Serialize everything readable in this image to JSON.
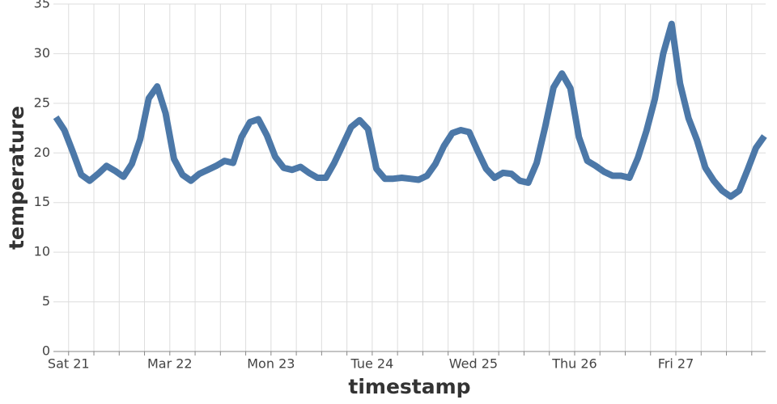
{
  "chart_data": {
    "type": "line",
    "x_label": "timestamp",
    "y_label": "temperature",
    "color": "#4c78a8",
    "grid": true,
    "xlim": [
      -3.6,
      165.3
    ],
    "ylim": [
      0,
      35
    ],
    "yticks": [
      0,
      5,
      10,
      15,
      20,
      25,
      30,
      35
    ],
    "xticks": [
      {
        "value": 0,
        "label": "Sat 21"
      },
      {
        "value": 6,
        "label": null
      },
      {
        "value": 12,
        "label": null
      },
      {
        "value": 18,
        "label": null
      },
      {
        "value": 24,
        "label": "Mar 22"
      },
      {
        "value": 30,
        "label": null
      },
      {
        "value": 36,
        "label": null
      },
      {
        "value": 42,
        "label": null
      },
      {
        "value": 48,
        "label": "Mon 23"
      },
      {
        "value": 54,
        "label": null
      },
      {
        "value": 60,
        "label": null
      },
      {
        "value": 66,
        "label": null
      },
      {
        "value": 72,
        "label": "Tue 24"
      },
      {
        "value": 78,
        "label": null
      },
      {
        "value": 84,
        "label": null
      },
      {
        "value": 90,
        "label": null
      },
      {
        "value": 96,
        "label": "Wed 25"
      },
      {
        "value": 102,
        "label": null
      },
      {
        "value": 108,
        "label": null
      },
      {
        "value": 114,
        "label": null
      },
      {
        "value": 120,
        "label": "Thu 26"
      },
      {
        "value": 126,
        "label": null
      },
      {
        "value": 132,
        "label": null
      },
      {
        "value": 138,
        "label": null
      },
      {
        "value": 144,
        "label": "Fri 27"
      },
      {
        "value": 150,
        "label": null
      },
      {
        "value": 156,
        "label": null
      },
      {
        "value": 162,
        "label": null
      }
    ],
    "x": [
      -3,
      -1,
      1,
      3,
      5,
      7,
      9,
      11,
      13,
      15,
      17,
      19,
      21,
      23,
      25,
      27,
      29,
      31,
      33,
      35,
      37,
      39,
      41,
      43,
      45,
      47,
      49,
      51,
      53,
      55,
      57,
      59,
      61,
      63,
      65,
      67,
      69,
      71,
      73,
      75,
      77,
      79,
      81,
      83,
      85,
      87,
      89,
      91,
      93,
      95,
      97,
      99,
      101,
      103,
      105,
      107,
      109,
      111,
      113,
      115,
      117,
      119,
      121,
      123,
      125,
      127,
      129,
      131,
      133,
      135,
      137,
      139,
      141,
      143,
      145,
      147,
      149,
      151,
      153,
      155,
      157,
      159,
      161,
      163,
      165
    ],
    "values": [
      23.6,
      22.3,
      20.1,
      17.8,
      17.2,
      17.9,
      18.7,
      18.2,
      17.6,
      18.9,
      21.4,
      25.5,
      26.7,
      24,
      19.4,
      17.8,
      17.2,
      17.9,
      18.3,
      18.7,
      19.2,
      19.0,
      21.6,
      23.1,
      23.4,
      21.8,
      19.6,
      18.5,
      18.3,
      18.6,
      18.0,
      17.5,
      17.5,
      19.0,
      20.8,
      22.6,
      23.3,
      22.4,
      18.4,
      17.4,
      17.4,
      17.5,
      17.4,
      17.3,
      17.7,
      18.9,
      20.7,
      22.0,
      22.3,
      22.1,
      20.2,
      18.4,
      17.5,
      18.0,
      17.9,
      17.2,
      17.0,
      19.0,
      22.6,
      26.6,
      28.0,
      26.5,
      21.6,
      19.2,
      18.7,
      18.1,
      17.7,
      17.7,
      17.5,
      19.5,
      22.2,
      25.4,
      30.0,
      33.0,
      27.0,
      23.5,
      21.3,
      18.5,
      17.2,
      16.2,
      15.6,
      16.2,
      18.3,
      20.5,
      21.7
    ]
  }
}
